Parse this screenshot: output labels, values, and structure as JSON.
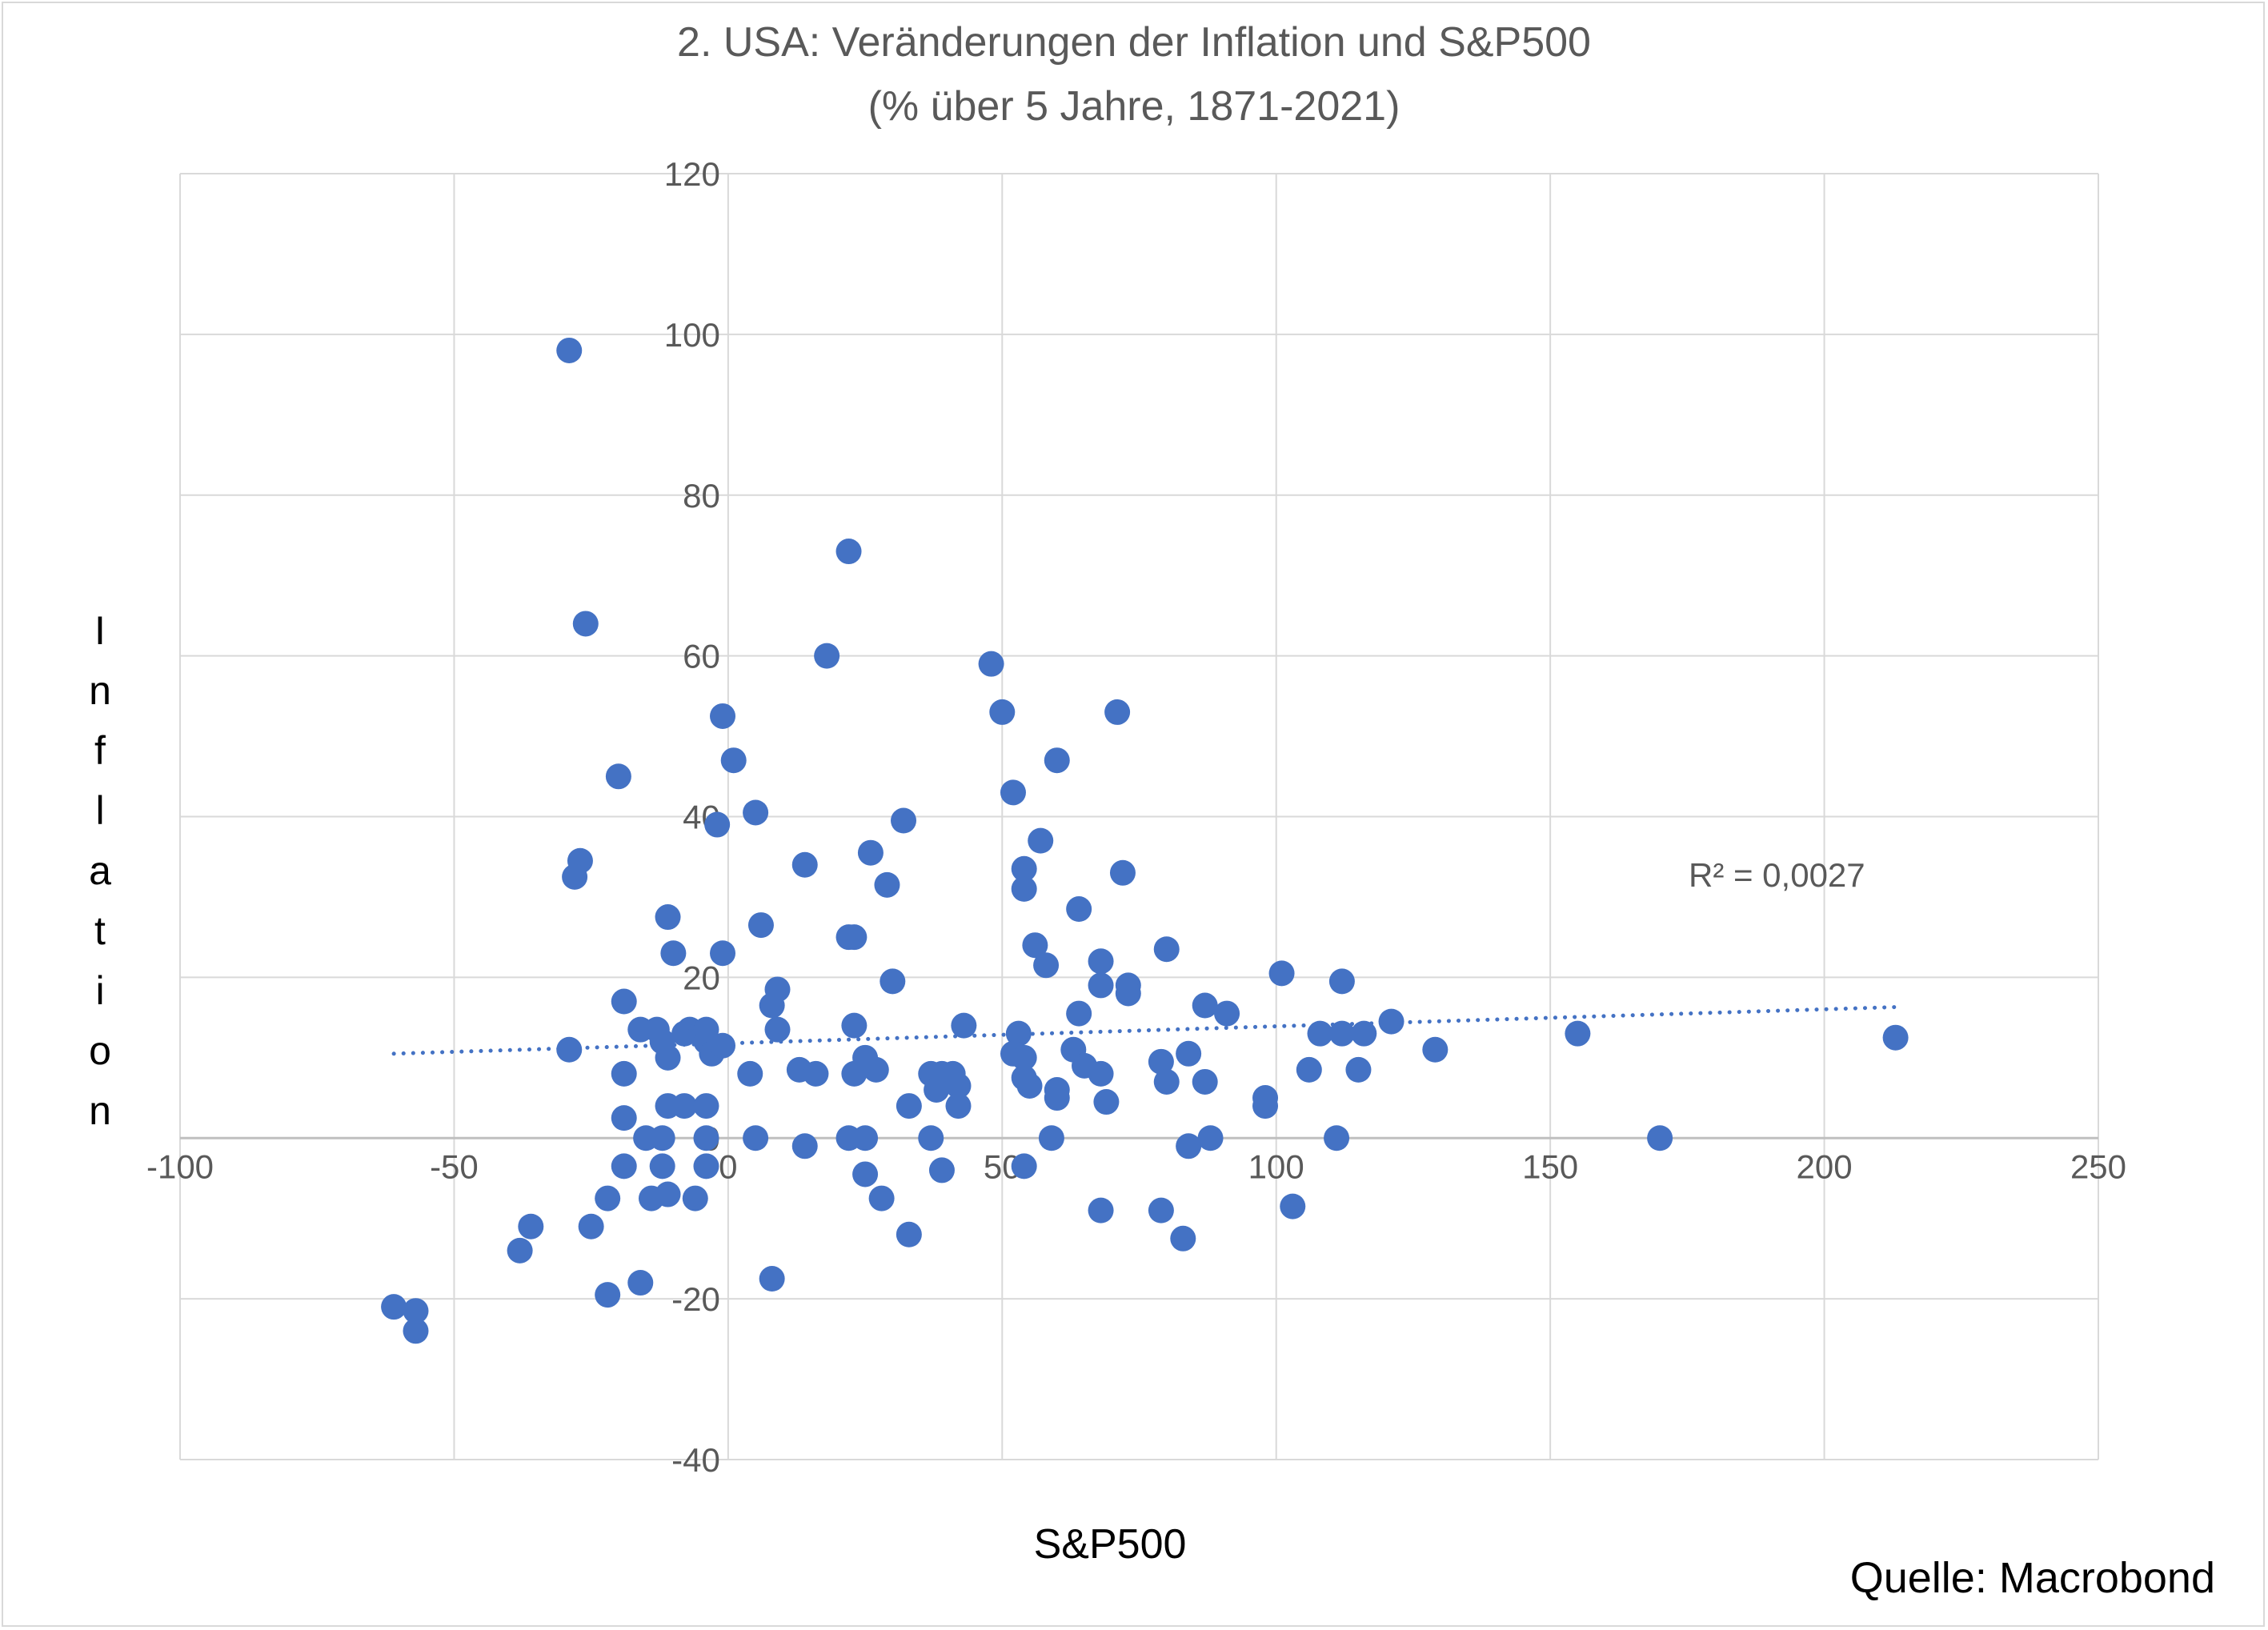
{
  "chart_data": {
    "type": "scatter",
    "title": "2. USA: Veränderungen der Inflation und S&P500",
    "subtitle": "(% über 5 Jahre, 1871-2021)",
    "xlabel": "S&P500",
    "ylabel": "Inflation",
    "xlim": [
      -100,
      250
    ],
    "ylim": [
      -40,
      120
    ],
    "x_ticks": [
      "-100",
      "-50",
      "0",
      "50",
      "100",
      "150",
      "200",
      "250"
    ],
    "y_ticks": [
      "-40",
      "-20",
      "0",
      "20",
      "40",
      "60",
      "80",
      "100",
      "120"
    ],
    "grid": true,
    "point_color": "#4472C4",
    "trendline": {
      "type": "linear",
      "x": [
        -61,
        213
      ],
      "y": [
        10.5,
        16.3
      ],
      "label": "R² = 0,0027"
    },
    "source": "Quelle: Macrobond",
    "points": [
      [
        -29,
        98
      ],
      [
        -26,
        64
      ],
      [
        22,
        73
      ],
      [
        18,
        60
      ],
      [
        48,
        59
      ],
      [
        -1,
        52.5
      ],
      [
        50,
        53
      ],
      [
        71,
        53
      ],
      [
        1,
        47
      ],
      [
        60,
        47
      ],
      [
        -20,
        45
      ],
      [
        52,
        43
      ],
      [
        5,
        40.5
      ],
      [
        -2,
        39
      ],
      [
        32,
        39.5
      ],
      [
        57,
        37
      ],
      [
        -27,
        34.5
      ],
      [
        -28,
        32.5
      ],
      [
        14,
        34
      ],
      [
        26,
        35.5
      ],
      [
        29,
        31.5
      ],
      [
        54,
        33.5
      ],
      [
        54,
        31
      ],
      [
        72,
        33
      ],
      [
        64,
        28.5
      ],
      [
        6,
        26.5
      ],
      [
        -11,
        27.5
      ],
      [
        22,
        25
      ],
      [
        23,
        25
      ],
      [
        -1,
        23
      ],
      [
        -10,
        23
      ],
      [
        56,
        24
      ],
      [
        58,
        21.5
      ],
      [
        68,
        22
      ],
      [
        80,
        23.5
      ],
      [
        101,
        20.5
      ],
      [
        30,
        19.5
      ],
      [
        68,
        19
      ],
      [
        73,
        19
      ],
      [
        73,
        18
      ],
      [
        112,
        19.5
      ],
      [
        -19,
        17
      ],
      [
        8,
        16.5
      ],
      [
        9,
        18.5
      ],
      [
        87,
        16.5
      ],
      [
        91,
        15.5
      ],
      [
        64,
        15.5
      ],
      [
        121,
        14.5
      ],
      [
        -29,
        11
      ],
      [
        -16,
        13.5
      ],
      [
        -13,
        13.5
      ],
      [
        -12,
        12
      ],
      [
        -11,
        10
      ],
      [
        -8,
        13
      ],
      [
        -7,
        13.5
      ],
      [
        -5,
        13
      ],
      [
        -4,
        13.5
      ],
      [
        -4,
        12
      ],
      [
        -3,
        10.5
      ],
      [
        -1,
        11.5
      ],
      [
        9,
        13.5
      ],
      [
        23,
        14
      ],
      [
        43,
        14
      ],
      [
        53,
        13
      ],
      [
        52,
        10.5
      ],
      [
        54,
        10
      ],
      [
        63,
        11
      ],
      [
        108,
        13
      ],
      [
        112,
        13
      ],
      [
        116,
        13
      ],
      [
        129,
        11
      ],
      [
        155,
        13
      ],
      [
        213,
        12.5
      ],
      [
        -19,
        8
      ],
      [
        4,
        8
      ],
      [
        13,
        8.5
      ],
      [
        16,
        8
      ],
      [
        23,
        8
      ],
      [
        25,
        10
      ],
      [
        27,
        8.5
      ],
      [
        37,
        8
      ],
      [
        38,
        6
      ],
      [
        39,
        8
      ],
      [
        41,
        8
      ],
      [
        42,
        6.5
      ],
      [
        42,
        4
      ],
      [
        54,
        7.5
      ],
      [
        55,
        6.5
      ],
      [
        60,
        6
      ],
      [
        60,
        5
      ],
      [
        65,
        9
      ],
      [
        68,
        8
      ],
      [
        69,
        4.5
      ],
      [
        79,
        9.5
      ],
      [
        80,
        7
      ],
      [
        84,
        10.5
      ],
      [
        87,
        7
      ],
      [
        98,
        5
      ],
      [
        98,
        4
      ],
      [
        106,
        8.5
      ],
      [
        115,
        8.5
      ],
      [
        -8,
        4
      ],
      [
        -11,
        4
      ],
      [
        -4,
        4
      ],
      [
        33,
        4
      ],
      [
        -19,
        2.5
      ],
      [
        -15,
        0
      ],
      [
        -12,
        0
      ],
      [
        -4,
        0
      ],
      [
        5,
        0
      ],
      [
        22,
        0
      ],
      [
        25,
        0
      ],
      [
        37,
        0
      ],
      [
        59,
        0
      ],
      [
        88,
        0
      ],
      [
        111,
        0
      ],
      [
        170,
        0
      ],
      [
        14,
        -1
      ],
      [
        84,
        -1
      ],
      [
        -19,
        -3.5
      ],
      [
        -12,
        -3.5
      ],
      [
        -4,
        -3.5
      ],
      [
        25,
        -4.5
      ],
      [
        39,
        -4
      ],
      [
        54,
        -3.5
      ],
      [
        -22,
        -7.5
      ],
      [
        -14,
        -7.5
      ],
      [
        -11,
        -7
      ],
      [
        -6,
        -7.5
      ],
      [
        28,
        -7.5
      ],
      [
        -25,
        -11
      ],
      [
        -36,
        -11
      ],
      [
        -38,
        -14
      ],
      [
        33,
        -12
      ],
      [
        68,
        -9
      ],
      [
        79,
        -9
      ],
      [
        83,
        -12.5
      ],
      [
        103,
        -8.5
      ],
      [
        -16,
        -18
      ],
      [
        -22,
        -19.5
      ],
      [
        8,
        -17.5
      ],
      [
        -61,
        -21
      ],
      [
        -57,
        -21.5
      ],
      [
        -57,
        -24
      ]
    ]
  }
}
